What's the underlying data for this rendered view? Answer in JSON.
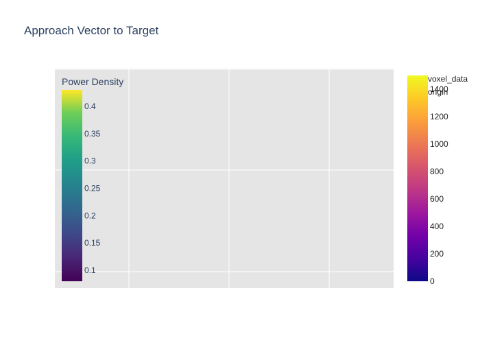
{
  "chart_data": {
    "type": "heatmap",
    "title": "Approach Vector to Target",
    "xlabel": "",
    "ylabel": "",
    "grid": true,
    "colors": {
      "plot_bg": "#e5e5e5",
      "grid": "#ffffff",
      "text": "#2a3f5f"
    },
    "colorbars": [
      {
        "name": "power-density",
        "title": "Power Density",
        "colorscale": "viridis",
        "range": [
          0.08,
          0.43
        ],
        "ticks": [
          "0.1",
          "0.15",
          "0.2",
          "0.25",
          "0.3",
          "0.35",
          "0.4"
        ],
        "tick_values": [
          0.1,
          0.15,
          0.2,
          0.25,
          0.3,
          0.35,
          0.4
        ],
        "placement": "inside-left"
      },
      {
        "name": "voxel-data",
        "title": "voxel_data",
        "colorscale": "plasma",
        "range": [
          0,
          1500
        ],
        "ticks": [
          "0",
          "200",
          "400",
          "600",
          "800",
          "1000",
          "1200",
          "1400"
        ],
        "tick_values": [
          0,
          200,
          400,
          600,
          800,
          1000,
          1200,
          1400
        ],
        "placement": "right"
      }
    ],
    "legend": {
      "placement": "right",
      "entries": [
        "origin"
      ]
    }
  }
}
